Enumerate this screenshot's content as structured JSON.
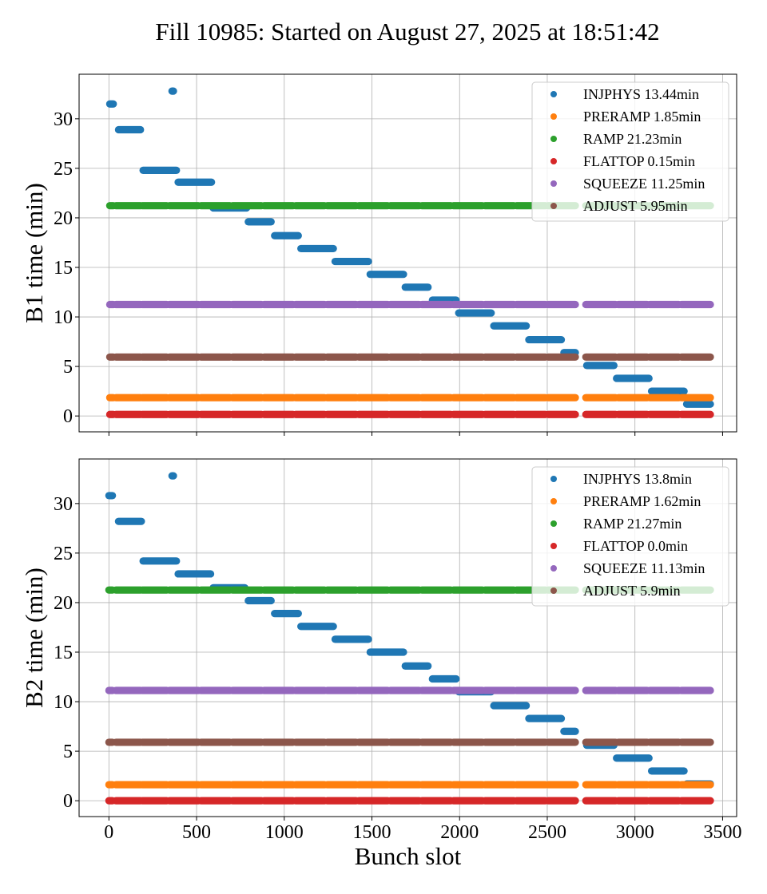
{
  "title": "Fill 10985: Started on August 27, 2025 at 18:51:42",
  "colors": {
    "INJPHYS": "#1f77b4",
    "PRERAMP": "#ff7f0e",
    "RAMP": "#2ca02c",
    "FLATTOP": "#d62728",
    "SQUEEZE": "#9467bd",
    "ADJUST": "#8c564b"
  },
  "chart_data": [
    {
      "type": "scatter",
      "xlabel": "",
      "ylabel": "B1 time (min)",
      "xlim": [
        -170,
        3580
      ],
      "ylim": [
        -1.6,
        34.5
      ],
      "xticks": [
        0,
        500,
        1000,
        1500,
        2000,
        2500,
        3000,
        3500
      ],
      "yticks": [
        0,
        5,
        10,
        15,
        20,
        25,
        30
      ],
      "grid": true,
      "legend_position": "top-right",
      "legend": [
        "INJPHYS 13.44min",
        "PRERAMP 1.85min",
        "RAMP 21.23min",
        "FLATTOP 0.15min",
        "SQUEEZE 11.25min",
        "ADJUST 5.95min"
      ],
      "flat_series": [
        {
          "phase": "PRERAMP",
          "y": 1.85
        },
        {
          "phase": "RAMP",
          "y": 21.23
        },
        {
          "phase": "FLATTOP",
          "y": 0.15
        },
        {
          "phase": "SQUEEZE",
          "y": 11.25
        },
        {
          "phase": "ADJUST",
          "y": 5.95
        }
      ],
      "filled_trains": [
        [
          5,
          25
        ],
        [
          40,
          180
        ],
        [
          190,
          330
        ],
        [
          345,
          510
        ],
        [
          525,
          690
        ],
        [
          705,
          870
        ],
        [
          885,
          1050
        ],
        [
          1065,
          1230
        ],
        [
          1245,
          1410
        ],
        [
          1425,
          1590
        ],
        [
          1605,
          1770
        ],
        [
          1785,
          1950
        ],
        [
          1965,
          2130
        ],
        [
          2145,
          2310
        ],
        [
          2325,
          2490
        ],
        [
          2505,
          2660
        ],
        [
          2720,
          2890
        ],
        [
          2905,
          3070
        ],
        [
          3085,
          3250
        ],
        [
          3265,
          3430
        ]
      ],
      "injphys_trains": [
        {
          "x": [
            5,
            25
          ],
          "y": 31.5
        },
        {
          "x": [
            360,
            368
          ],
          "y": 32.8
        },
        {
          "x": [
            55,
            180
          ],
          "y": 28.9
        },
        {
          "x": [
            195,
            385
          ],
          "y": 24.8
        },
        {
          "x": [
            395,
            585
          ],
          "y": 23.6
        },
        {
          "x": [
            595,
            785
          ],
          "y": 21.0
        },
        {
          "x": [
            795,
            925
          ],
          "y": 19.6
        },
        {
          "x": [
            945,
            1080
          ],
          "y": 18.2
        },
        {
          "x": [
            1095,
            1280
          ],
          "y": 16.9
        },
        {
          "x": [
            1290,
            1480
          ],
          "y": 15.6
        },
        {
          "x": [
            1490,
            1680
          ],
          "y": 14.3
        },
        {
          "x": [
            1690,
            1820
          ],
          "y": 13.0
        },
        {
          "x": [
            1845,
            1980
          ],
          "y": 11.7
        },
        {
          "x": [
            1995,
            2180
          ],
          "y": 10.4
        },
        {
          "x": [
            2195,
            2380
          ],
          "y": 9.1
        },
        {
          "x": [
            2395,
            2580
          ],
          "y": 7.7
        },
        {
          "x": [
            2595,
            2660
          ],
          "y": 6.4
        },
        {
          "x": [
            2725,
            2880
          ],
          "y": 5.1
        },
        {
          "x": [
            2895,
            3080
          ],
          "y": 3.8
        },
        {
          "x": [
            3095,
            3280
          ],
          "y": 2.5
        },
        {
          "x": [
            3295,
            3430
          ],
          "y": 1.2
        }
      ]
    },
    {
      "type": "scatter",
      "xlabel": "Bunch slot",
      "ylabel": "B2 time (min)",
      "xlim": [
        -170,
        3580
      ],
      "ylim": [
        -1.6,
        34.5
      ],
      "xticks": [
        0,
        500,
        1000,
        1500,
        2000,
        2500,
        3000,
        3500
      ],
      "yticks": [
        0,
        5,
        10,
        15,
        20,
        25,
        30
      ],
      "grid": true,
      "legend_position": "top-right",
      "legend": [
        "INJPHYS 13.8min",
        "PRERAMP 1.62min",
        "RAMP 21.27min",
        "FLATTOP 0.0min",
        "SQUEEZE 11.13min",
        "ADJUST 5.9min"
      ],
      "flat_series": [
        {
          "phase": "PRERAMP",
          "y": 1.62
        },
        {
          "phase": "RAMP",
          "y": 21.27
        },
        {
          "phase": "FLATTOP",
          "y": 0.0
        },
        {
          "phase": "SQUEEZE",
          "y": 11.13
        },
        {
          "phase": "ADJUST",
          "y": 5.9
        }
      ],
      "filled_trains": [
        [
          0,
          20
        ],
        [
          40,
          180
        ],
        [
          190,
          330
        ],
        [
          345,
          510
        ],
        [
          525,
          690
        ],
        [
          705,
          870
        ],
        [
          885,
          1050
        ],
        [
          1065,
          1230
        ],
        [
          1245,
          1410
        ],
        [
          1425,
          1590
        ],
        [
          1605,
          1770
        ],
        [
          1785,
          1950
        ],
        [
          1965,
          2130
        ],
        [
          2145,
          2310
        ],
        [
          2325,
          2490
        ],
        [
          2505,
          2660
        ],
        [
          2720,
          2890
        ],
        [
          2905,
          3070
        ],
        [
          3085,
          3250
        ],
        [
          3265,
          3430
        ]
      ],
      "injphys_trains": [
        {
          "x": [
            0,
            20
          ],
          "y": 30.8
        },
        {
          "x": [
            360,
            368
          ],
          "y": 32.8
        },
        {
          "x": [
            55,
            185
          ],
          "y": 28.2
        },
        {
          "x": [
            195,
            385
          ],
          "y": 24.2
        },
        {
          "x": [
            395,
            580
          ],
          "y": 22.9
        },
        {
          "x": [
            595,
            775
          ],
          "y": 21.5
        },
        {
          "x": [
            795,
            925
          ],
          "y": 20.2
        },
        {
          "x": [
            945,
            1080
          ],
          "y": 18.9
        },
        {
          "x": [
            1095,
            1280
          ],
          "y": 17.6
        },
        {
          "x": [
            1290,
            1480
          ],
          "y": 16.3
        },
        {
          "x": [
            1490,
            1680
          ],
          "y": 15.0
        },
        {
          "x": [
            1690,
            1820
          ],
          "y": 13.6
        },
        {
          "x": [
            1845,
            1980
          ],
          "y": 12.3
        },
        {
          "x": [
            1995,
            2180
          ],
          "y": 11.0
        },
        {
          "x": [
            2195,
            2380
          ],
          "y": 9.6
        },
        {
          "x": [
            2395,
            2580
          ],
          "y": 8.3
        },
        {
          "x": [
            2595,
            2660
          ],
          "y": 7.0
        },
        {
          "x": [
            2725,
            2880
          ],
          "y": 5.6
        },
        {
          "x": [
            2895,
            3080
          ],
          "y": 4.3
        },
        {
          "x": [
            3095,
            3280
          ],
          "y": 3.0
        },
        {
          "x": [
            3295,
            3430
          ],
          "y": 1.7
        }
      ]
    }
  ]
}
